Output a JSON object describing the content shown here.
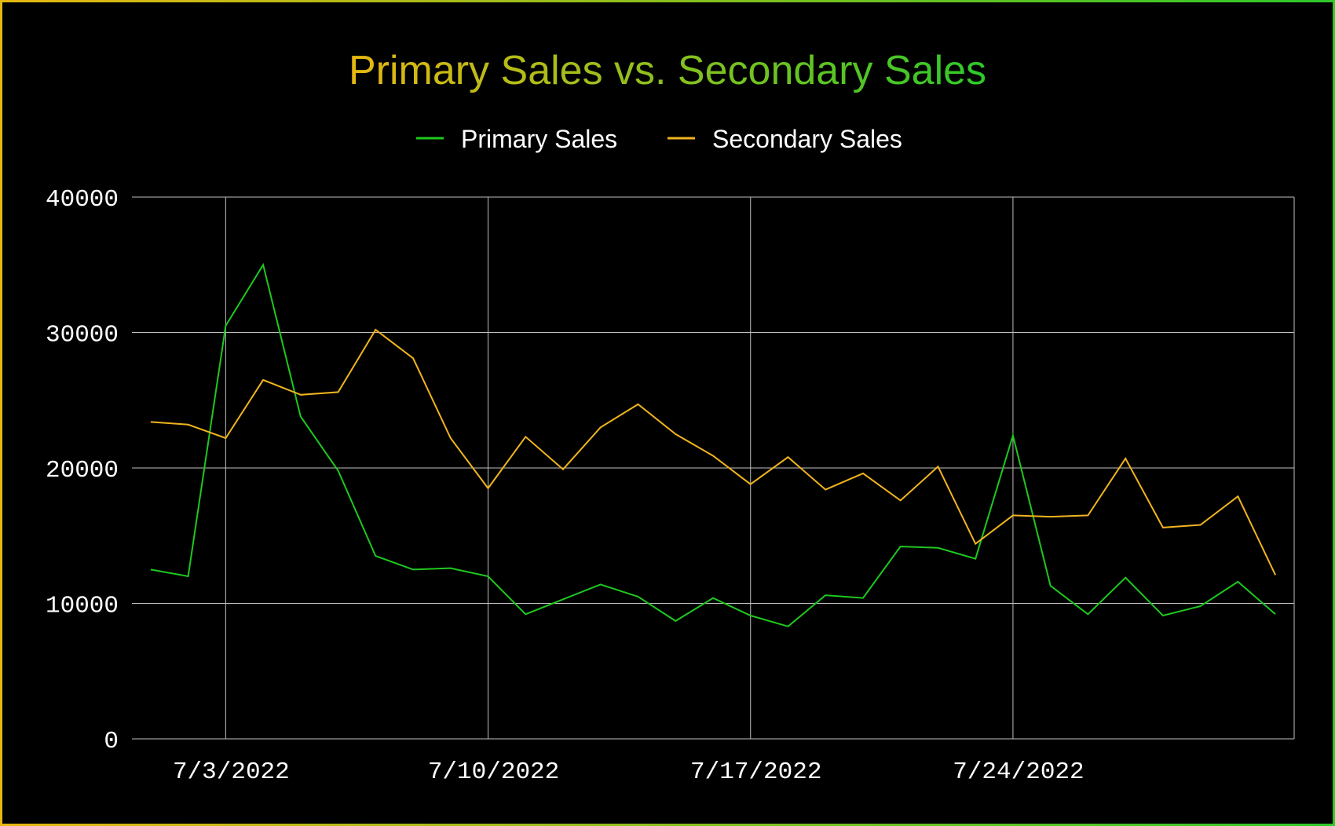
{
  "chart_data": {
    "type": "line",
    "title": "Primary Sales vs. Secondary Sales",
    "colors": {
      "primary": "#1ec81e",
      "secondary": "#f0b41e",
      "title_gradient": [
        "#e6b711",
        "#2ec82a"
      ],
      "grid": "#bfbfbf",
      "background": "#000000"
    },
    "xlabel": "",
    "ylabel": "",
    "ylim": [
      0,
      40000
    ],
    "yticks": [
      "0",
      "10000",
      "20000",
      "30000",
      "40000"
    ],
    "xticks": [
      "7/3/2022",
      "7/10/2022",
      "7/17/2022",
      "7/24/2022"
    ],
    "grid": true,
    "legend_position": "top",
    "x": [
      "7/1/2022",
      "7/2/2022",
      "7/3/2022",
      "7/4/2022",
      "7/5/2022",
      "7/6/2022",
      "7/7/2022",
      "7/8/2022",
      "7/9/2022",
      "7/10/2022",
      "7/11/2022",
      "7/12/2022",
      "7/13/2022",
      "7/14/2022",
      "7/15/2022",
      "7/16/2022",
      "7/17/2022",
      "7/18/2022",
      "7/19/2022",
      "7/20/2022",
      "7/21/2022",
      "7/22/2022",
      "7/23/2022",
      "7/24/2022",
      "7/25/2022",
      "7/26/2022",
      "7/27/2022",
      "7/28/2022",
      "7/29/2022",
      "7/30/2022",
      "7/31/2022"
    ],
    "series": [
      {
        "name": "Primary Sales",
        "color": "#1ec81e",
        "values": [
          12500,
          12000,
          30500,
          35000,
          23800,
          19800,
          13500,
          12500,
          12600,
          12000,
          9200,
          10300,
          11400,
          10500,
          8700,
          10400,
          9100,
          8300,
          10600,
          10400,
          14200,
          14100,
          13300,
          22400,
          11300,
          9200,
          11900,
          9100,
          9800,
          11600,
          9200
        ]
      },
      {
        "name": "Secondary Sales",
        "color": "#f0b41e",
        "values": [
          23400,
          23200,
          22200,
          26500,
          25400,
          25600,
          30200,
          28100,
          22200,
          18500,
          22300,
          19900,
          23000,
          24700,
          22500,
          20900,
          18800,
          20800,
          18400,
          19600,
          17600,
          20100,
          14400,
          16500,
          16400,
          16500,
          20700,
          15600,
          15800,
          17900,
          12100
        ]
      }
    ]
  }
}
